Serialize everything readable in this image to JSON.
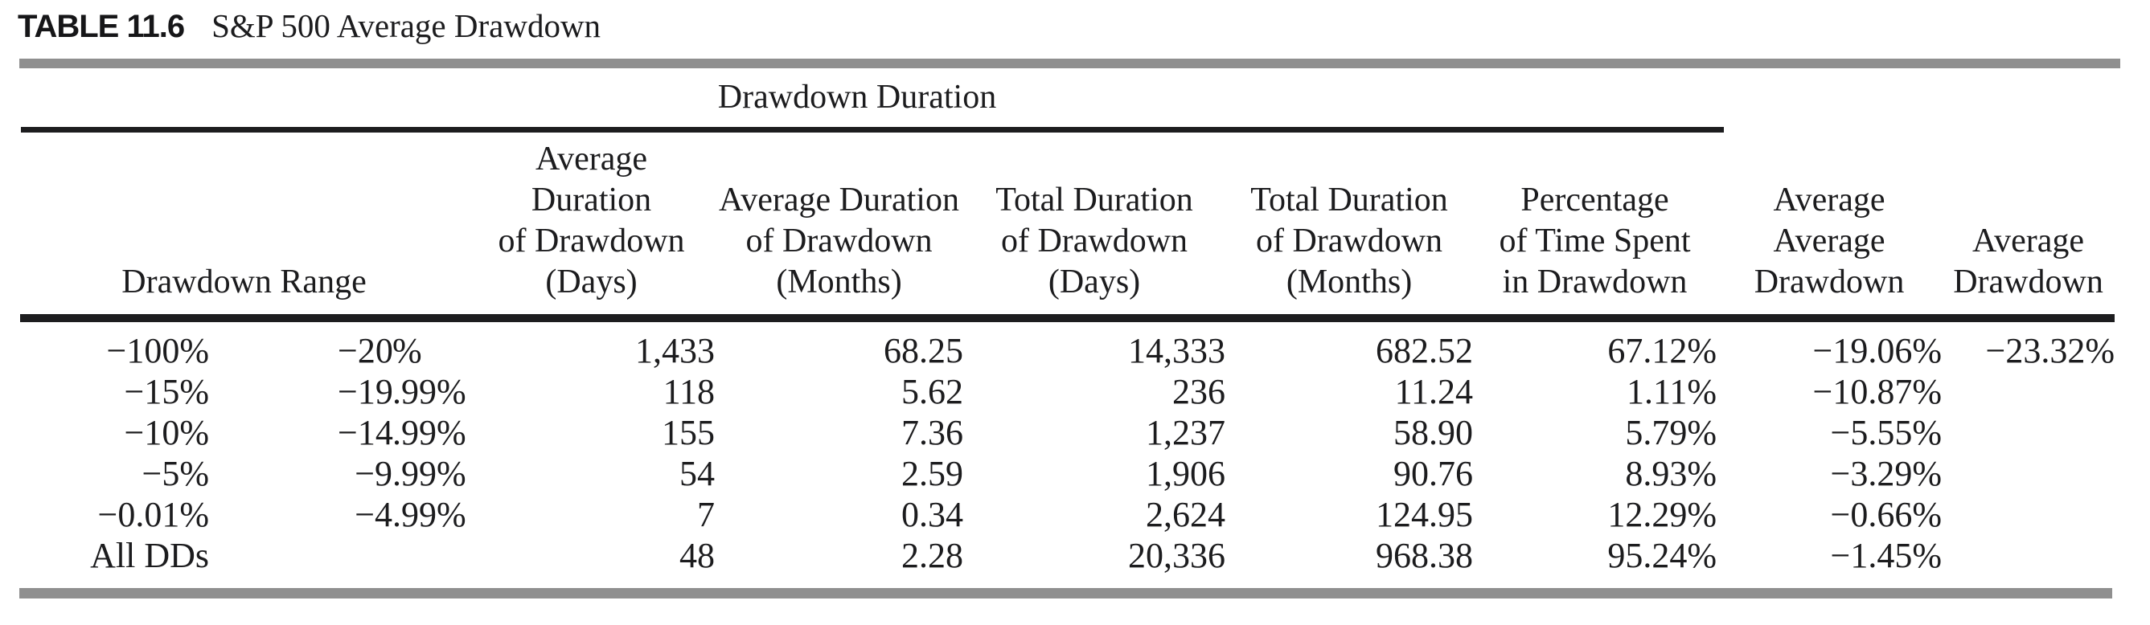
{
  "title": {
    "label": "TABLE 11.6",
    "text": "S&P 500 Average Drawdown"
  },
  "table": {
    "spanner": "Drawdown Duration",
    "columns": {
      "range": "Drawdown Range",
      "avg_duration_days": [
        "Average",
        "Duration",
        "of Drawdown",
        "(Days)"
      ],
      "avg_duration_months": [
        "Average Duration",
        "of Drawdown",
        "(Months)"
      ],
      "total_duration_days": [
        "Total Duration",
        "of Drawdown",
        "(Days)"
      ],
      "total_duration_months": [
        "Total Duration",
        "of Drawdown",
        "(Months)"
      ],
      "pct_time_in_drawdown": [
        "Percentage",
        "of Time Spent",
        "in Drawdown"
      ],
      "avg_avg_drawdown": [
        "Average",
        "Average",
        "Drawdown"
      ],
      "avg_drawdown": [
        "Average",
        "Drawdown"
      ]
    },
    "rows": [
      {
        "range_low": "−100%",
        "range_high": "−20%",
        "avg_duration_days": "1,433",
        "avg_duration_months": "68.25",
        "total_duration_days": "14,333",
        "total_duration_months": "682.52",
        "pct_time_in_drawdown": "67.12%",
        "avg_avg_drawdown": "−19.06%",
        "avg_drawdown": "−23.32%"
      },
      {
        "range_low": "−15%",
        "range_high": "−19.99%",
        "avg_duration_days": "118",
        "avg_duration_months": "5.62",
        "total_duration_days": "236",
        "total_duration_months": "11.24",
        "pct_time_in_drawdown": "1.11%",
        "avg_avg_drawdown": "−10.87%",
        "avg_drawdown": ""
      },
      {
        "range_low": "−10%",
        "range_high": "−14.99%",
        "avg_duration_days": "155",
        "avg_duration_months": "7.36",
        "total_duration_days": "1,237",
        "total_duration_months": "58.90",
        "pct_time_in_drawdown": "5.79%",
        "avg_avg_drawdown": "−5.55%",
        "avg_drawdown": ""
      },
      {
        "range_low": "−5%",
        "range_high": "−9.99%",
        "avg_duration_days": "54",
        "avg_duration_months": "2.59",
        "total_duration_days": "1,906",
        "total_duration_months": "90.76",
        "pct_time_in_drawdown": "8.93%",
        "avg_avg_drawdown": "−3.29%",
        "avg_drawdown": ""
      },
      {
        "range_low": "−0.01%",
        "range_high": "−4.99%",
        "avg_duration_days": "7",
        "avg_duration_months": "0.34",
        "total_duration_days": "2,624",
        "total_duration_months": "124.95",
        "pct_time_in_drawdown": "12.29%",
        "avg_avg_drawdown": "−0.66%",
        "avg_drawdown": ""
      },
      {
        "range_low": "All DDs",
        "range_high": "",
        "avg_duration_days": "48",
        "avg_duration_months": "2.28",
        "total_duration_days": "20,336",
        "total_duration_months": "968.38",
        "pct_time_in_drawdown": "95.24%",
        "avg_avg_drawdown": "−1.45%",
        "avg_drawdown": ""
      }
    ]
  }
}
